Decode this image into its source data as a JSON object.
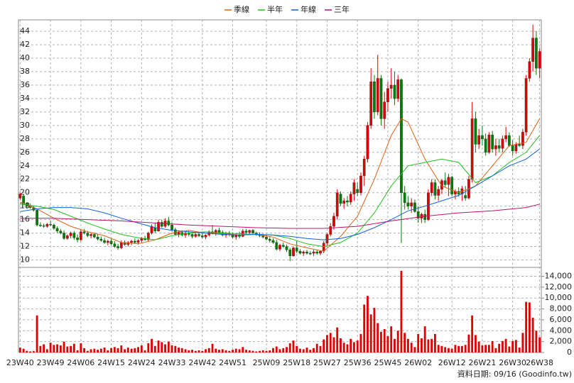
{
  "chart_data": {
    "type": "candlestick",
    "legend": "top",
    "grid": true,
    "footer": "資料日期: 09/16 (Goodinfo.tw)",
    "up_color": "#e00000",
    "down_color": "#008000",
    "volume_color": "#e00000",
    "categories": [
      "23W40",
      null,
      null,
      null,
      null,
      null,
      null,
      null,
      null,
      "23W49",
      null,
      null,
      null,
      null,
      null,
      null,
      null,
      null,
      "24W06",
      null,
      null,
      null,
      null,
      null,
      null,
      null,
      null,
      "24W15",
      null,
      null,
      null,
      null,
      null,
      null,
      null,
      null,
      "24W24",
      null,
      null,
      null,
      null,
      null,
      null,
      null,
      null,
      "24W33",
      null,
      null,
      null,
      null,
      null,
      null,
      null,
      null,
      "24W42",
      null,
      null,
      null,
      null,
      null,
      null,
      null,
      null,
      "24W51",
      null,
      null,
      null,
      null,
      null,
      null,
      null,
      null,
      null,
      "25W09",
      null,
      null,
      null,
      null,
      null,
      null,
      null,
      null,
      "25W18",
      null,
      null,
      null,
      null,
      null,
      null,
      null,
      null,
      "25W27",
      null,
      null,
      null,
      null,
      null,
      null,
      null,
      null,
      "25W36",
      null,
      null,
      null,
      null,
      null,
      null,
      null,
      null,
      "25W45",
      null,
      null,
      null,
      null,
      null,
      null,
      null,
      null,
      "26W02",
      null,
      null,
      null,
      null,
      null,
      null,
      null,
      null,
      null,
      "26W12",
      null,
      null,
      null,
      null,
      null,
      null,
      null,
      null,
      "26W21",
      null,
      null,
      null,
      null,
      null,
      null,
      null,
      null,
      "26W30",
      null,
      null,
      null,
      null,
      null,
      null,
      null,
      "26W38"
    ],
    "open": [
      19.2,
      19.5,
      18.4,
      18.0,
      17.8,
      17.4,
      15.2,
      15.1,
      15.0,
      15.3,
      15.2,
      14.7,
      14.3,
      14.0,
      13.2,
      13.6,
      14.0,
      13.3,
      13.0,
      14.2,
      14.0,
      13.6,
      13.8,
      13.4,
      13.1,
      12.9,
      12.6,
      12.8,
      12.4,
      12.0,
      11.8,
      12.6,
      12.3,
      12.6,
      12.8,
      12.6,
      12.9,
      13.2,
      13.0,
      14.0,
      14.8,
      14.3,
      15.6,
      15.0,
      15.8,
      15.2,
      14.5,
      13.8,
      14.1,
      13.7,
      14.0,
      13.8,
      13.5,
      13.8,
      13.6,
      13.4,
      13.7,
      14.2,
      14.0,
      14.4,
      14.1,
      13.7,
      14.0,
      13.8,
      13.4,
      13.7,
      13.5,
      14.3,
      14.1,
      14.4,
      14.0,
      13.8,
      13.6,
      13.4,
      13.1,
      12.9,
      12.6,
      11.6,
      12.2,
      12.0,
      11.5,
      10.6,
      11.8,
      11.3,
      11.0,
      11.2,
      11.0,
      11.0,
      11.2,
      11.0,
      11.3,
      12.5,
      13.8,
      15.0,
      16.5,
      19.8,
      18.4,
      18.8,
      18.6,
      19.8,
      20.5,
      20.0,
      22.5,
      25.0,
      30.0,
      36.5,
      32.0,
      37.0,
      31.0,
      33.5,
      35.5,
      36.0,
      34.0,
      36.8,
      20.0,
      18.5,
      18.0,
      18.5,
      17.2,
      16.2,
      16.8,
      16.0,
      20.0,
      21.5,
      19.6,
      20.5,
      21.8,
      21.2,
      22.3,
      19.8,
      20.2,
      19.8,
      19.6,
      19.2,
      22.0,
      31.0,
      27.2,
      28.5,
      28.0,
      26.0,
      28.6,
      26.5,
      27.0,
      26.6,
      28.0,
      28.5,
      27.0,
      26.2,
      27.2,
      27.0,
      29.0,
      37.0,
      39.5,
      43.0,
      38.5
    ],
    "high": [
      20.0,
      19.8,
      18.6,
      18.4,
      18.0,
      17.6,
      15.6,
      15.4,
      15.5,
      15.8,
      15.4,
      15.0,
      14.6,
      14.4,
      13.8,
      14.2,
      14.3,
      13.8,
      14.5,
      14.6,
      14.3,
      14.0,
      14.1,
      13.8,
      13.5,
      13.3,
      13.0,
      13.1,
      12.8,
      12.4,
      12.9,
      12.9,
      12.8,
      13.0,
      13.2,
      13.1,
      13.4,
      13.6,
      14.2,
      15.3,
      15.5,
      16.0,
      16.0,
      16.2,
      16.4,
      15.6,
      14.8,
      14.4,
      14.4,
      14.2,
      14.3,
      14.1,
      14.0,
      14.2,
      14.0,
      13.8,
      14.4,
      15.2,
      14.6,
      14.8,
      14.4,
      14.2,
      14.3,
      14.1,
      13.9,
      14.2,
      14.6,
      14.6,
      14.5,
      14.6,
      14.2,
      14.1,
      13.9,
      13.7,
      13.4,
      13.2,
      13.0,
      12.4,
      12.6,
      12.3,
      11.8,
      12.0,
      12.8,
      11.6,
      11.4,
      11.5,
      11.3,
      11.5,
      11.5,
      11.4,
      12.8,
      14.0,
      15.5,
      17.0,
      20.5,
      20.2,
      19.2,
      19.5,
      20.2,
      22.0,
      21.5,
      23.0,
      25.5,
      30.5,
      38.5,
      37.5,
      40.5,
      37.5,
      35.0,
      36.5,
      38.5,
      38.0,
      37.5,
      37.0,
      21.0,
      19.5,
      19.2,
      19.0,
      18.0,
      17.0,
      17.5,
      20.5,
      22.0,
      22.0,
      21.0,
      22.0,
      23.0,
      22.8,
      22.5,
      20.5,
      20.8,
      21.0,
      21.0,
      22.5,
      33.5,
      32.0,
      29.5,
      30.0,
      28.8,
      29.0,
      29.2,
      28.0,
      28.0,
      28.5,
      29.8,
      29.0,
      27.8,
      27.5,
      28.5,
      29.5,
      37.5,
      40.0,
      45.0,
      44.0,
      41.5
    ],
    "low": [
      19.0,
      18.2,
      17.6,
      17.6,
      17.2,
      15.0,
      14.9,
      14.8,
      14.8,
      15.0,
      14.5,
      14.0,
      13.8,
      13.0,
      13.0,
      13.2,
      13.0,
      12.6,
      12.8,
      13.8,
      13.4,
      13.2,
      13.2,
      12.9,
      12.7,
      12.4,
      12.2,
      12.2,
      11.8,
      11.5,
      11.6,
      12.1,
      12.0,
      12.2,
      12.4,
      12.3,
      12.6,
      12.9,
      12.8,
      13.8,
      14.0,
      14.2,
      14.8,
      14.8,
      15.0,
      14.2,
      13.6,
      13.4,
      13.5,
      13.3,
      13.5,
      13.2,
      13.3,
      13.4,
      13.2,
      13.1,
      13.5,
      13.8,
      13.6,
      13.9,
      13.5,
      13.3,
      13.5,
      13.2,
      13.0,
      13.2,
      13.4,
      13.9,
      13.8,
      13.9,
      13.6,
      13.4,
      13.2,
      12.9,
      12.6,
      12.4,
      11.4,
      11.3,
      11.8,
      11.2,
      9.8,
      10.5,
      11.0,
      10.8,
      10.6,
      10.8,
      10.7,
      10.6,
      10.8,
      10.7,
      11.0,
      12.2,
      13.5,
      14.5,
      16.0,
      18.0,
      17.6,
      18.0,
      18.2,
      18.8,
      19.5,
      19.6,
      21.0,
      24.5,
      29.5,
      31.0,
      31.5,
      30.0,
      29.5,
      32.0,
      34.0,
      33.0,
      33.5,
      12.5,
      17.5,
      17.5,
      17.0,
      17.0,
      15.5,
      15.5,
      15.5,
      15.8,
      19.5,
      19.0,
      18.8,
      19.8,
      20.8,
      19.5,
      19.5,
      19.0,
      19.4,
      18.8,
      18.8,
      19.0,
      21.5,
      26.0,
      26.5,
      27.0,
      25.5,
      25.8,
      26.0,
      25.5,
      26.0,
      26.0,
      27.5,
      26.8,
      25.5,
      25.8,
      26.8,
      26.5,
      28.5,
      36.5,
      38.0,
      37.5,
      37.0
    ],
    "close": [
      19.8,
      18.4,
      18.0,
      17.8,
      17.4,
      15.2,
      15.1,
      15.0,
      15.3,
      15.2,
      14.7,
      14.3,
      14.0,
      13.2,
      13.6,
      14.0,
      13.3,
      13.0,
      14.2,
      14.0,
      13.6,
      13.8,
      13.4,
      13.1,
      12.9,
      12.6,
      12.8,
      12.4,
      12.0,
      11.8,
      12.6,
      12.3,
      12.6,
      12.8,
      12.6,
      12.9,
      13.2,
      13.0,
      14.0,
      15.0,
      14.3,
      15.6,
      15.0,
      15.8,
      15.2,
      14.5,
      13.8,
      14.1,
      13.7,
      14.0,
      13.8,
      13.5,
      13.8,
      13.6,
      13.4,
      13.7,
      14.2,
      14.0,
      14.4,
      14.1,
      13.7,
      14.0,
      13.8,
      13.4,
      13.7,
      13.5,
      14.3,
      14.1,
      14.4,
      14.0,
      13.8,
      13.6,
      13.4,
      13.1,
      12.9,
      12.6,
      11.6,
      12.2,
      12.0,
      11.5,
      10.6,
      11.8,
      11.3,
      11.0,
      11.2,
      11.0,
      10.9,
      11.2,
      11.0,
      11.3,
      12.5,
      13.8,
      15.0,
      16.5,
      20.0,
      18.4,
      18.8,
      18.6,
      19.8,
      21.5,
      20.0,
      22.5,
      25.0,
      30.0,
      36.5,
      32.0,
      37.0,
      31.0,
      33.5,
      35.5,
      36.0,
      34.0,
      36.8,
      20.0,
      18.5,
      18.0,
      18.5,
      17.2,
      16.2,
      16.8,
      16.0,
      20.0,
      21.5,
      19.6,
      20.5,
      21.8,
      21.2,
      22.3,
      19.8,
      20.2,
      19.8,
      20.6,
      19.2,
      22.0,
      31.0,
      27.2,
      28.5,
      28.0,
      26.0,
      28.6,
      26.5,
      27.0,
      26.6,
      28.0,
      28.5,
      27.0,
      26.2,
      27.2,
      27.0,
      29.0,
      37.0,
      39.5,
      43.0,
      38.5,
      41.0
    ],
    "volume": [
      900,
      700,
      300,
      200,
      250,
      6800,
      1200,
      1500,
      600,
      1800,
      1400,
      1500,
      1300,
      2000,
      1100,
      1200,
      1600,
      400,
      1700,
      800,
      300,
      600,
      700,
      500,
      700,
      900,
      400,
      800,
      1000,
      800,
      1300,
      600,
      900,
      700,
      800,
      1000,
      1300,
      400,
      1700,
      2500,
      1200,
      2200,
      1900,
      1500,
      2000,
      1300,
      1200,
      900,
      800,
      600,
      400,
      500,
      300,
      400,
      300,
      600,
      800,
      1600,
      700,
      500,
      600,
      400,
      300,
      500,
      700,
      600,
      1000,
      500,
      400,
      300,
      200,
      300,
      400,
      300,
      400,
      800,
      1100,
      600,
      800,
      1000,
      1700,
      2200,
      1200,
      700,
      600,
      900,
      500,
      800,
      1600,
      1200,
      2400,
      3200,
      3600,
      2800,
      4600,
      2600,
      1800,
      1500,
      2500,
      1900,
      2200,
      3400,
      8800,
      10400,
      7000,
      8200,
      5400,
      3800,
      4300,
      3000,
      4800,
      2500,
      4000,
      15000,
      3600,
      2500,
      1800,
      1000,
      3400,
      2600,
      4800,
      2400,
      2500,
      3400,
      1400,
      1200,
      1000,
      800,
      700,
      1400,
      1200,
      1200,
      1400,
      3300,
      6800,
      3200,
      2000,
      1300,
      1400,
      1400,
      2100,
      800,
      1600,
      2100,
      2500,
      1100,
      2100,
      2300,
      900,
      3600,
      9300,
      9200,
      6400,
      4000,
      2800
    ],
    "ylim": [
      9,
      45.7
    ],
    "yticks": [
      10,
      12,
      14,
      16,
      18,
      20,
      22,
      24,
      26,
      28,
      30,
      32,
      34,
      36,
      38,
      40,
      42,
      44
    ],
    "volume_lim": [
      0,
      15500
    ],
    "volume_ticks": [
      0,
      {
        "value": 2000,
        "label": "2,000"
      },
      {
        "value": 4000,
        "label": "4,000"
      },
      {
        "value": 6000,
        "label": "6,000"
      },
      {
        "value": 8000,
        "label": "8,000"
      },
      {
        "value": 10000,
        "label": "10,000"
      },
      {
        "value": 12000,
        "label": "12,000"
      },
      {
        "value": 14000,
        "label": "14,000"
      }
    ],
    "ma_series": [
      {
        "name": "季線",
        "color": "#e06010",
        "x": [
          0,
          5,
          10,
          15,
          20,
          25,
          30,
          35,
          40,
          45,
          50,
          55,
          60,
          65,
          70,
          75,
          80,
          85,
          90,
          95,
          100,
          105,
          110,
          113,
          115,
          120,
          125,
          130,
          135,
          140,
          145,
          150,
          154
        ],
        "values": [
          18.6,
          17.6,
          16.2,
          15,
          14.2,
          13.6,
          12.6,
          12.4,
          13.0,
          14.0,
          14.4,
          14.0,
          13.9,
          13.7,
          13.8,
          13.4,
          12.4,
          11.8,
          11.3,
          13.5,
          16.5,
          22,
          28.5,
          31,
          30.5,
          25,
          21,
          20,
          21,
          24,
          27,
          27.5,
          31
        ]
      },
      {
        "name": "半年",
        "color": "#20c020",
        "x": [
          0,
          5,
          10,
          15,
          20,
          25,
          30,
          35,
          40,
          45,
          50,
          55,
          60,
          65,
          70,
          75,
          80,
          85,
          90,
          95,
          100,
          105,
          110,
          115,
          120,
          125,
          130,
          135,
          140,
          145,
          150,
          154
        ],
        "values": [
          18.3,
          18,
          17.5,
          16.5,
          15.5,
          14.6,
          13.8,
          13.3,
          13.0,
          13.6,
          14.0,
          14.2,
          14.0,
          13.9,
          13.8,
          13.7,
          13.2,
          12.4,
          12,
          12.6,
          14,
          17,
          21,
          24,
          24.5,
          25,
          24.5,
          21.5,
          22.5,
          24.5,
          26,
          28.5
        ]
      },
      {
        "name": "年線",
        "color": "#1060e0",
        "x": [
          0,
          5,
          10,
          15,
          20,
          25,
          30,
          35,
          40,
          45,
          50,
          55,
          60,
          65,
          70,
          75,
          80,
          85,
          90,
          95,
          100,
          105,
          110,
          115,
          120,
          125,
          130,
          135,
          140,
          145,
          150,
          154
        ],
        "values": [
          17.2,
          17.6,
          17.8,
          17.8,
          17.6,
          17,
          16.2,
          15.5,
          14.8,
          14.4,
          14.2,
          14.0,
          13.8,
          13.7,
          13.8,
          13.7,
          13.5,
          13.2,
          13.0,
          13.2,
          13.8,
          14.8,
          16,
          17.3,
          18,
          18.8,
          19.6,
          21,
          22.5,
          24,
          25,
          26.5
        ]
      },
      {
        "name": "三年",
        "color": "#c01070",
        "x": [
          0,
          10,
          20,
          30,
          40,
          50,
          60,
          70,
          80,
          90,
          100,
          110,
          120,
          130,
          140,
          150,
          154
        ],
        "values": [
          16.2,
          16.2,
          16.0,
          15.8,
          15.5,
          15.2,
          15.0,
          14.8,
          14.7,
          14.7,
          15.0,
          15.8,
          16.5,
          17.0,
          17.3,
          17.8,
          18.3
        ]
      }
    ]
  }
}
